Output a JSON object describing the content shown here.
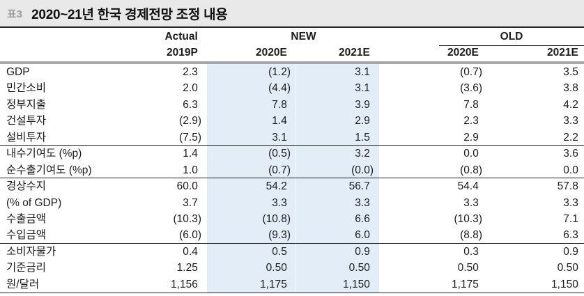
{
  "title_bar": {
    "tag": "표3",
    "title": "2020~21년 한국 경제전망 조정 내용"
  },
  "header": {
    "groups": {
      "actual": "Actual",
      "new": "NEW",
      "old": "OLD"
    },
    "columns": [
      "2019P",
      "2020E",
      "2021E",
      "2020E",
      "2021E"
    ]
  },
  "table": {
    "rows": [
      {
        "label": "GDP",
        "values": [
          "2.3",
          "(1.2)",
          "3.1",
          "(0.7)",
          "3.5"
        ],
        "group_end": false
      },
      {
        "label": "민간소비",
        "values": [
          "2.0",
          "(4.4)",
          "3.1",
          "(3.6)",
          "3.8"
        ],
        "group_end": false
      },
      {
        "label": "정부지출",
        "values": [
          "6.3",
          "7.8",
          "3.9",
          "7.8",
          "4.2"
        ],
        "group_end": false
      },
      {
        "label": "건설투자",
        "values": [
          "(2.9)",
          "1.4",
          "2.9",
          "2.3",
          "3.3"
        ],
        "group_end": false
      },
      {
        "label": "설비투자",
        "values": [
          "(7.5)",
          "3.1",
          "1.5",
          "2.9",
          "2.2"
        ],
        "group_end": true
      },
      {
        "label": "내수기여도 (%p)",
        "values": [
          "1.4",
          "(0.5)",
          "3.2",
          "0.0",
          "3.6"
        ],
        "group_end": false
      },
      {
        "label": "순수출기여도 (%p)",
        "values": [
          "1.0",
          "(0.7)",
          "(0.0)",
          "(0.8)",
          "0.0"
        ],
        "group_end": true
      },
      {
        "label": "경상수지",
        "values": [
          "60.0",
          "54.2",
          "56.7",
          "54.4",
          "57.8"
        ],
        "group_end": false
      },
      {
        "label": "(% of GDP)",
        "values": [
          "3.7",
          "3.3",
          "3.3",
          "3.3",
          "3.3"
        ],
        "group_end": false
      },
      {
        "label": "수출금액",
        "values": [
          "(10.3)",
          "(10.8)",
          "6.6",
          "(10.3)",
          "7.1"
        ],
        "group_end": false
      },
      {
        "label": "수입금액",
        "values": [
          "(6.0)",
          "(9.3)",
          "6.0",
          "(8.8)",
          "6.3"
        ],
        "group_end": true
      },
      {
        "label": "소비자물가",
        "values": [
          "0.4",
          "0.5",
          "0.9",
          "0.3",
          "0.9"
        ],
        "group_end": false
      },
      {
        "label": "기준금리",
        "values": [
          "1.25",
          "0.50",
          "0.50",
          "0.50",
          "0.50"
        ],
        "group_end": false
      },
      {
        "label": "원/달러",
        "values": [
          "1,156",
          "1,175",
          "1,150",
          "1,175",
          "1,150"
        ],
        "group_end": false
      }
    ]
  },
  "colors": {
    "highlight_blue": "#e3edf7",
    "title_bar_bg": "#e9e9e9",
    "tag_gray": "#9c9c9c",
    "header_bar_gray": "#a7a7a7"
  }
}
